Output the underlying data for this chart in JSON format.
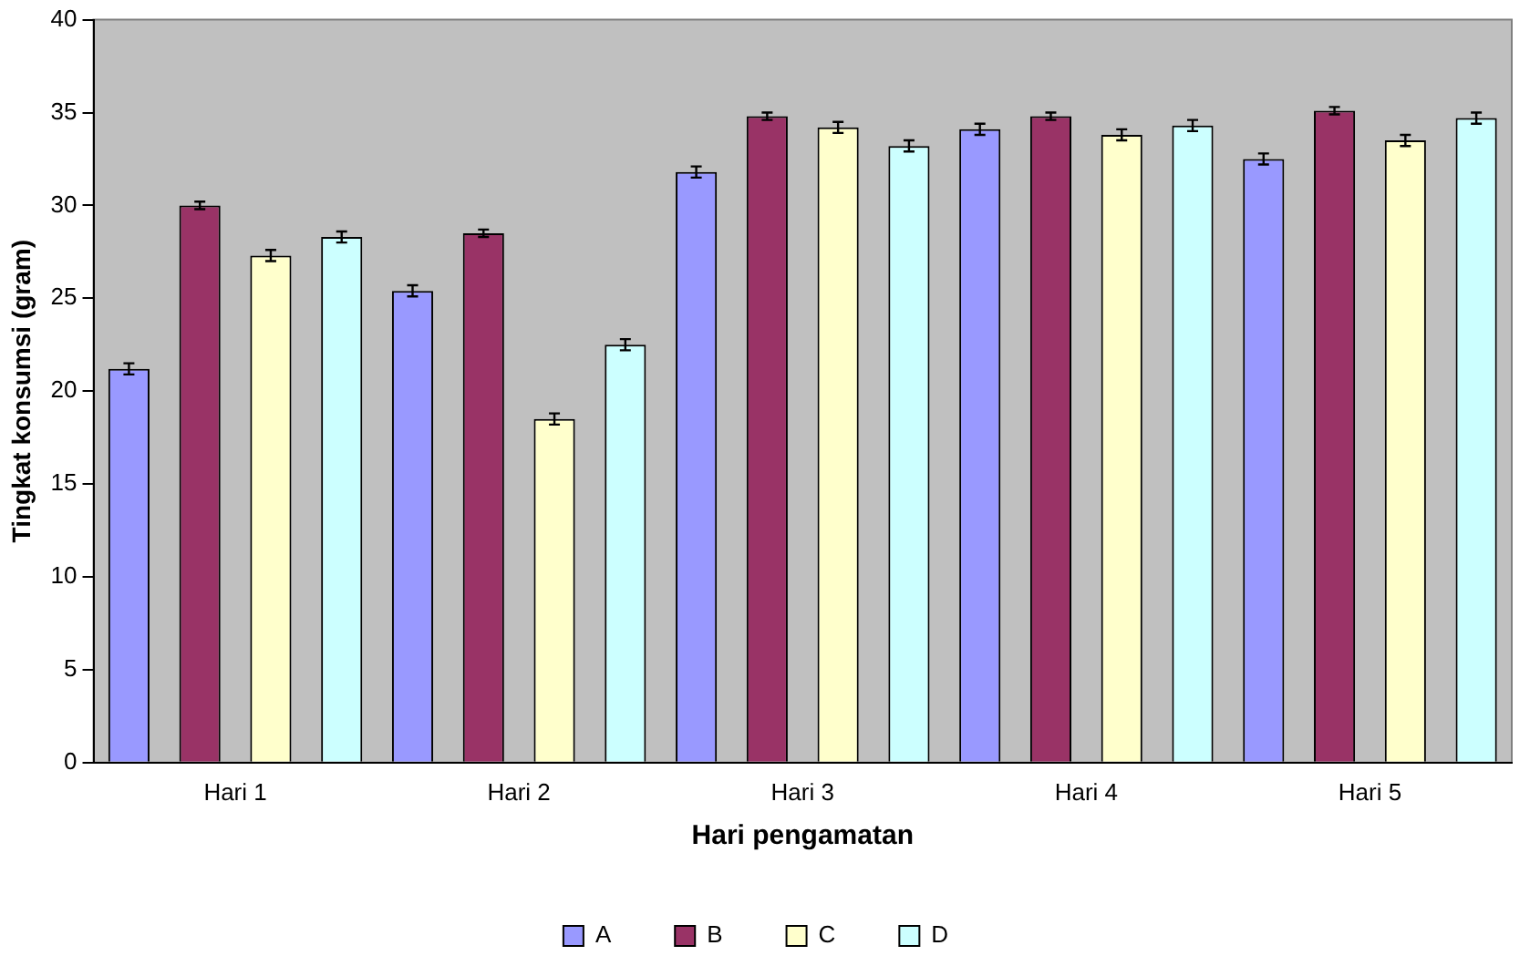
{
  "chart_data": {
    "type": "bar",
    "xlabel": "Hari pengamatan",
    "ylabel": "Tingkat konsumsi (gram)",
    "categories": [
      "Hari 1",
      "Hari 2",
      "Hari 3",
      "Hari 4",
      "Hari 5"
    ],
    "series": [
      {
        "name": "A",
        "color": "#9999ff",
        "values": [
          21.2,
          25.4,
          31.8,
          34.1,
          32.5
        ],
        "errors": [
          0.3,
          0.3,
          0.3,
          0.3,
          0.3
        ]
      },
      {
        "name": "B",
        "color": "#993366",
        "values": [
          30.0,
          28.5,
          34.8,
          34.8,
          35.1
        ],
        "errors": [
          0.2,
          0.2,
          0.2,
          0.2,
          0.2
        ]
      },
      {
        "name": "C",
        "color": "#ffffcc",
        "values": [
          27.3,
          18.5,
          34.2,
          33.8,
          33.5
        ],
        "errors": [
          0.3,
          0.3,
          0.3,
          0.3,
          0.3
        ]
      },
      {
        "name": "D",
        "color": "#ccffff",
        "values": [
          28.3,
          22.5,
          33.2,
          34.3,
          34.7
        ],
        "errors": [
          0.3,
          0.3,
          0.3,
          0.3,
          0.3
        ]
      }
    ],
    "ylim": [
      0,
      40
    ],
    "yticks": [
      0,
      5,
      10,
      15,
      20,
      25,
      30,
      35,
      40
    ],
    "grid": false,
    "legend": "bottom"
  }
}
